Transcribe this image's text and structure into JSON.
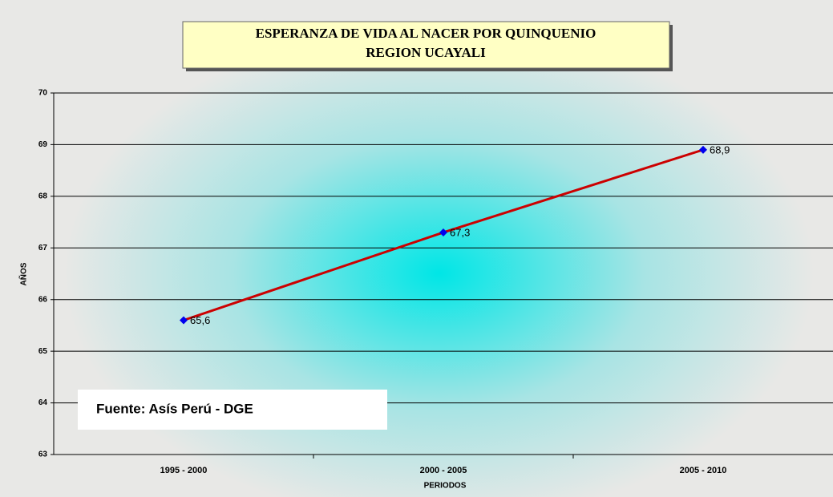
{
  "chart_data": {
    "type": "line",
    "title": "ESPERANZA DE VIDA AL NACER POR QUINQUENIO",
    "subtitle": "REGION UCAYALI",
    "x_label": "PERIODOS",
    "y_label": "AÑOS",
    "annotation": "Fuente: Asís Perú - DGE",
    "categories": [
      "1995 - 2000",
      "2000 - 2005",
      "2005 - 2010"
    ],
    "series": [
      {
        "color": "#cc0000",
        "marker_color": "#0000ee",
        "values": [
          65.6,
          67.3,
          68.9
        ],
        "value_labels": [
          "65,6",
          "67,3",
          "68,9"
        ]
      }
    ],
    "ylim": [
      63,
      70
    ],
    "yticks": [
      63,
      64,
      65,
      66,
      67,
      68,
      69,
      70
    ],
    "grid": true
  }
}
